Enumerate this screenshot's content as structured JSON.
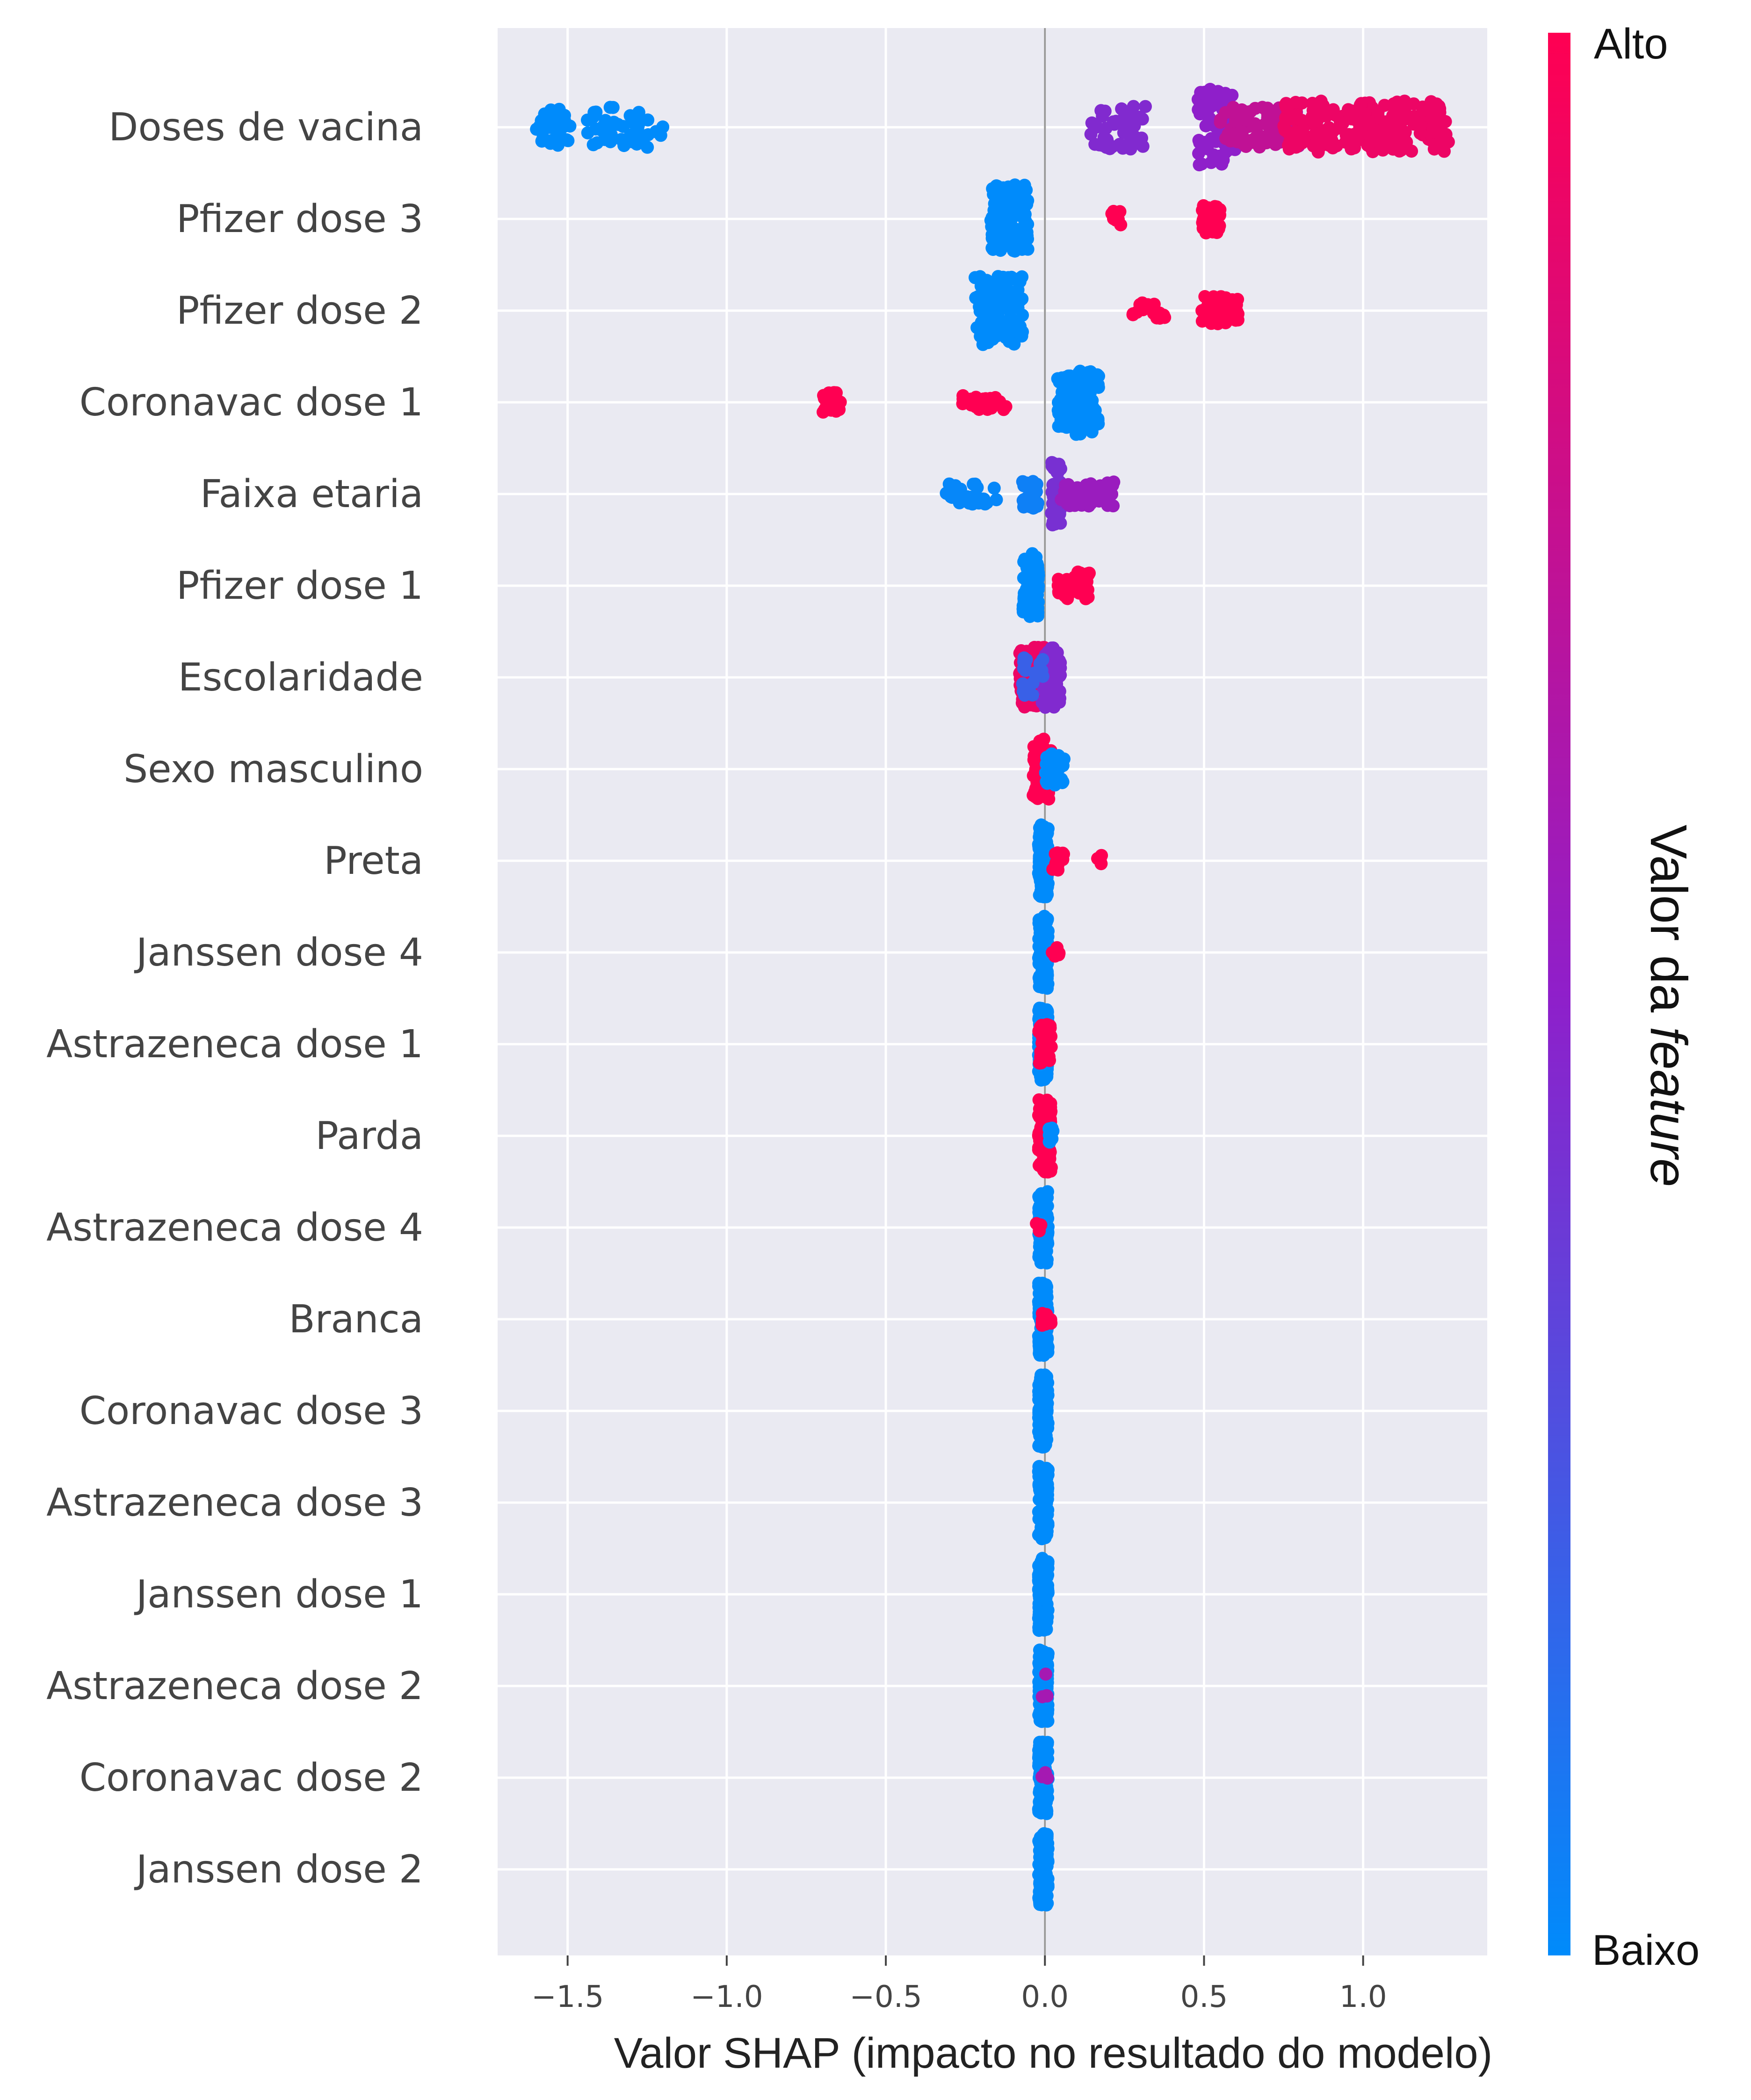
{
  "chart_data": {
    "type": "scatter",
    "subtype": "shap-beeswarm-summary",
    "title": "",
    "xlabel": "Valor SHAP (impacto no resultado do modelo)",
    "ylabel": "",
    "xlim": [
      -1.72,
      1.39
    ],
    "xticks": [
      {
        "value": -1.5,
        "label": "−1.5"
      },
      {
        "value": -1.0,
        "label": "−1.0"
      },
      {
        "value": -0.5,
        "label": "−0.5"
      },
      {
        "value": 0.0,
        "label": "0.0"
      },
      {
        "value": 0.5,
        "label": "0.5"
      },
      {
        "value": 1.0,
        "label": "1.0"
      }
    ],
    "grid": true,
    "background": "#eaeaf2",
    "colorbar": {
      "title_prefix": "Valor da ",
      "title_italic": "feature",
      "high_label": "Alto",
      "low_label": "Baixo",
      "low_color": "#008bfb",
      "high_color": "#ff0052",
      "mid_color": "#8f1fca"
    },
    "features": [
      {
        "name": "Doses de vacina",
        "clusters": [
          {
            "x": -1.6,
            "x2": -1.49,
            "n": 40,
            "spread": 0.45,
            "v": 0.0
          },
          {
            "x": -1.44,
            "x2": -1.2,
            "n": 45,
            "spread": 0.5,
            "v": 0.0
          },
          {
            "x": 0.14,
            "x2": 0.32,
            "n": 45,
            "spread": 0.55,
            "v": 0.45
          },
          {
            "x": 0.48,
            "x2": 0.6,
            "n": 80,
            "spread": 0.95,
            "v": 0.5
          },
          {
            "x": 0.55,
            "x2": 0.8,
            "n": 90,
            "spread": 0.5,
            "v": 0.72
          },
          {
            "x": 0.75,
            "x2": 1.27,
            "n": 220,
            "spread": 0.65,
            "v": 0.92
          }
        ]
      },
      {
        "name": "Pfizer dose 3",
        "clusters": [
          {
            "x": -0.17,
            "x2": -0.05,
            "n": 110,
            "spread": 0.85,
            "v": 0.0
          },
          {
            "x": 0.21,
            "x2": 0.24,
            "n": 12,
            "spread": 0.2,
            "v": 1.0
          },
          {
            "x": 0.49,
            "x2": 0.55,
            "n": 40,
            "spread": 0.35,
            "v": 1.0
          }
        ]
      },
      {
        "name": "Pfizer dose 2",
        "clusters": [
          {
            "x": -0.22,
            "x2": -0.07,
            "n": 120,
            "spread": 0.85,
            "v": 0.0
          },
          {
            "x": 0.27,
            "x2": 0.38,
            "n": 15,
            "spread": 0.2,
            "v": 1.0
          },
          {
            "x": 0.49,
            "x2": 0.61,
            "n": 40,
            "spread": 0.35,
            "v": 1.0
          }
        ]
      },
      {
        "name": "Coronavac dose 1",
        "clusters": [
          {
            "x": -0.7,
            "x2": -0.64,
            "n": 25,
            "spread": 0.25,
            "v": 1.0
          },
          {
            "x": -0.26,
            "x2": -0.12,
            "n": 30,
            "spread": 0.2,
            "v": 1.0
          },
          {
            "x": 0.04,
            "x2": 0.17,
            "n": 120,
            "spread": 0.8,
            "v": 0.0
          }
        ]
      },
      {
        "name": "Faixa etaria",
        "clusters": [
          {
            "x": -0.31,
            "x2": -0.15,
            "n": 40,
            "spread": 0.25,
            "v": 0.02
          },
          {
            "x": -0.07,
            "x2": -0.02,
            "n": 30,
            "spread": 0.35,
            "v": 0.05
          },
          {
            "x": 0.02,
            "x2": 0.05,
            "n": 60,
            "spread": 0.8,
            "v": 0.42
          },
          {
            "x": 0.05,
            "x2": 0.22,
            "n": 50,
            "spread": 0.3,
            "v": 0.55
          }
        ]
      },
      {
        "name": "Pfizer dose 1",
        "clusters": [
          {
            "x": -0.07,
            "x2": -0.02,
            "n": 90,
            "spread": 0.8,
            "v": 0.0
          },
          {
            "x": 0.04,
            "x2": 0.14,
            "n": 45,
            "spread": 0.35,
            "v": 1.0
          }
        ]
      },
      {
        "name": "Escolaridade",
        "clusters": [
          {
            "x": -0.08,
            "x2": 0.0,
            "n": 90,
            "spread": 0.75,
            "v": 0.92
          },
          {
            "x": -0.01,
            "x2": 0.05,
            "n": 80,
            "spread": 0.75,
            "v": 0.45
          },
          {
            "x": -0.07,
            "x2": 0.0,
            "n": 20,
            "spread": 0.5,
            "v": 0.2
          }
        ]
      },
      {
        "name": "Sexo masculino",
        "clusters": [
          {
            "x": -0.04,
            "x2": 0.02,
            "n": 70,
            "spread": 0.75,
            "v": 1.0
          },
          {
            "x": 0.0,
            "x2": 0.06,
            "n": 40,
            "spread": 0.4,
            "v": 0.0
          }
        ]
      },
      {
        "name": "Preta",
        "clusters": [
          {
            "x": -0.02,
            "x2": 0.01,
            "n": 110,
            "spread": 0.9,
            "v": 0.0
          },
          {
            "x": 0.02,
            "x2": 0.06,
            "n": 12,
            "spread": 0.25,
            "v": 1.0
          },
          {
            "x": 0.16,
            "x2": 0.18,
            "n": 4,
            "spread": 0.15,
            "v": 1.0
          }
        ]
      },
      {
        "name": "Janssen dose 4",
        "clusters": [
          {
            "x": -0.02,
            "x2": 0.01,
            "n": 120,
            "spread": 0.9,
            "v": 0.0
          },
          {
            "x": 0.02,
            "x2": 0.05,
            "n": 8,
            "spread": 0.15,
            "v": 1.0
          }
        ]
      },
      {
        "name": "Astrazeneca dose 1",
        "clusters": [
          {
            "x": -0.02,
            "x2": 0.01,
            "n": 110,
            "spread": 0.9,
            "v": 0.0
          },
          {
            "x": -0.02,
            "x2": 0.02,
            "n": 40,
            "spread": 0.5,
            "v": 1.0
          }
        ]
      },
      {
        "name": "Parda",
        "clusters": [
          {
            "x": -0.02,
            "x2": 0.02,
            "n": 130,
            "spread": 0.9,
            "v": 1.0
          },
          {
            "x": 0.01,
            "x2": 0.03,
            "n": 8,
            "spread": 0.2,
            "v": 0.0
          }
        ]
      },
      {
        "name": "Astrazeneca dose 4",
        "clusters": [
          {
            "x": -0.02,
            "x2": 0.01,
            "n": 130,
            "spread": 0.9,
            "v": 0.0
          },
          {
            "x": -0.03,
            "x2": -0.01,
            "n": 3,
            "spread": 0.1,
            "v": 1.0
          }
        ]
      },
      {
        "name": "Branca",
        "clusters": [
          {
            "x": -0.02,
            "x2": 0.01,
            "n": 120,
            "spread": 0.9,
            "v": 0.0
          },
          {
            "x": -0.01,
            "x2": 0.02,
            "n": 15,
            "spread": 0.15,
            "v": 1.0
          }
        ]
      },
      {
        "name": "Coronavac dose 3",
        "clusters": [
          {
            "x": -0.02,
            "x2": 0.01,
            "n": 130,
            "spread": 0.9,
            "v": 0.0
          }
        ]
      },
      {
        "name": "Astrazeneca dose 3",
        "clusters": [
          {
            "x": -0.02,
            "x2": 0.01,
            "n": 130,
            "spread": 0.9,
            "v": 0.0
          }
        ]
      },
      {
        "name": "Janssen dose 1",
        "clusters": [
          {
            "x": -0.02,
            "x2": 0.01,
            "n": 130,
            "spread": 0.9,
            "v": 0.0
          }
        ]
      },
      {
        "name": "Astrazeneca dose 2",
        "clusters": [
          {
            "x": -0.02,
            "x2": 0.01,
            "n": 130,
            "spread": 0.9,
            "v": 0.0
          },
          {
            "x": -0.01,
            "x2": 0.01,
            "n": 4,
            "spread": 0.3,
            "v": 0.6
          }
        ]
      },
      {
        "name": "Coronavac dose 2",
        "clusters": [
          {
            "x": -0.02,
            "x2": 0.01,
            "n": 130,
            "spread": 0.9,
            "v": 0.0
          },
          {
            "x": -0.01,
            "x2": 0.01,
            "n": 3,
            "spread": 0.3,
            "v": 0.6
          }
        ]
      },
      {
        "name": "Janssen dose 2",
        "clusters": [
          {
            "x": -0.02,
            "x2": 0.01,
            "n": 130,
            "spread": 0.9,
            "v": 0.0
          }
        ]
      }
    ]
  }
}
